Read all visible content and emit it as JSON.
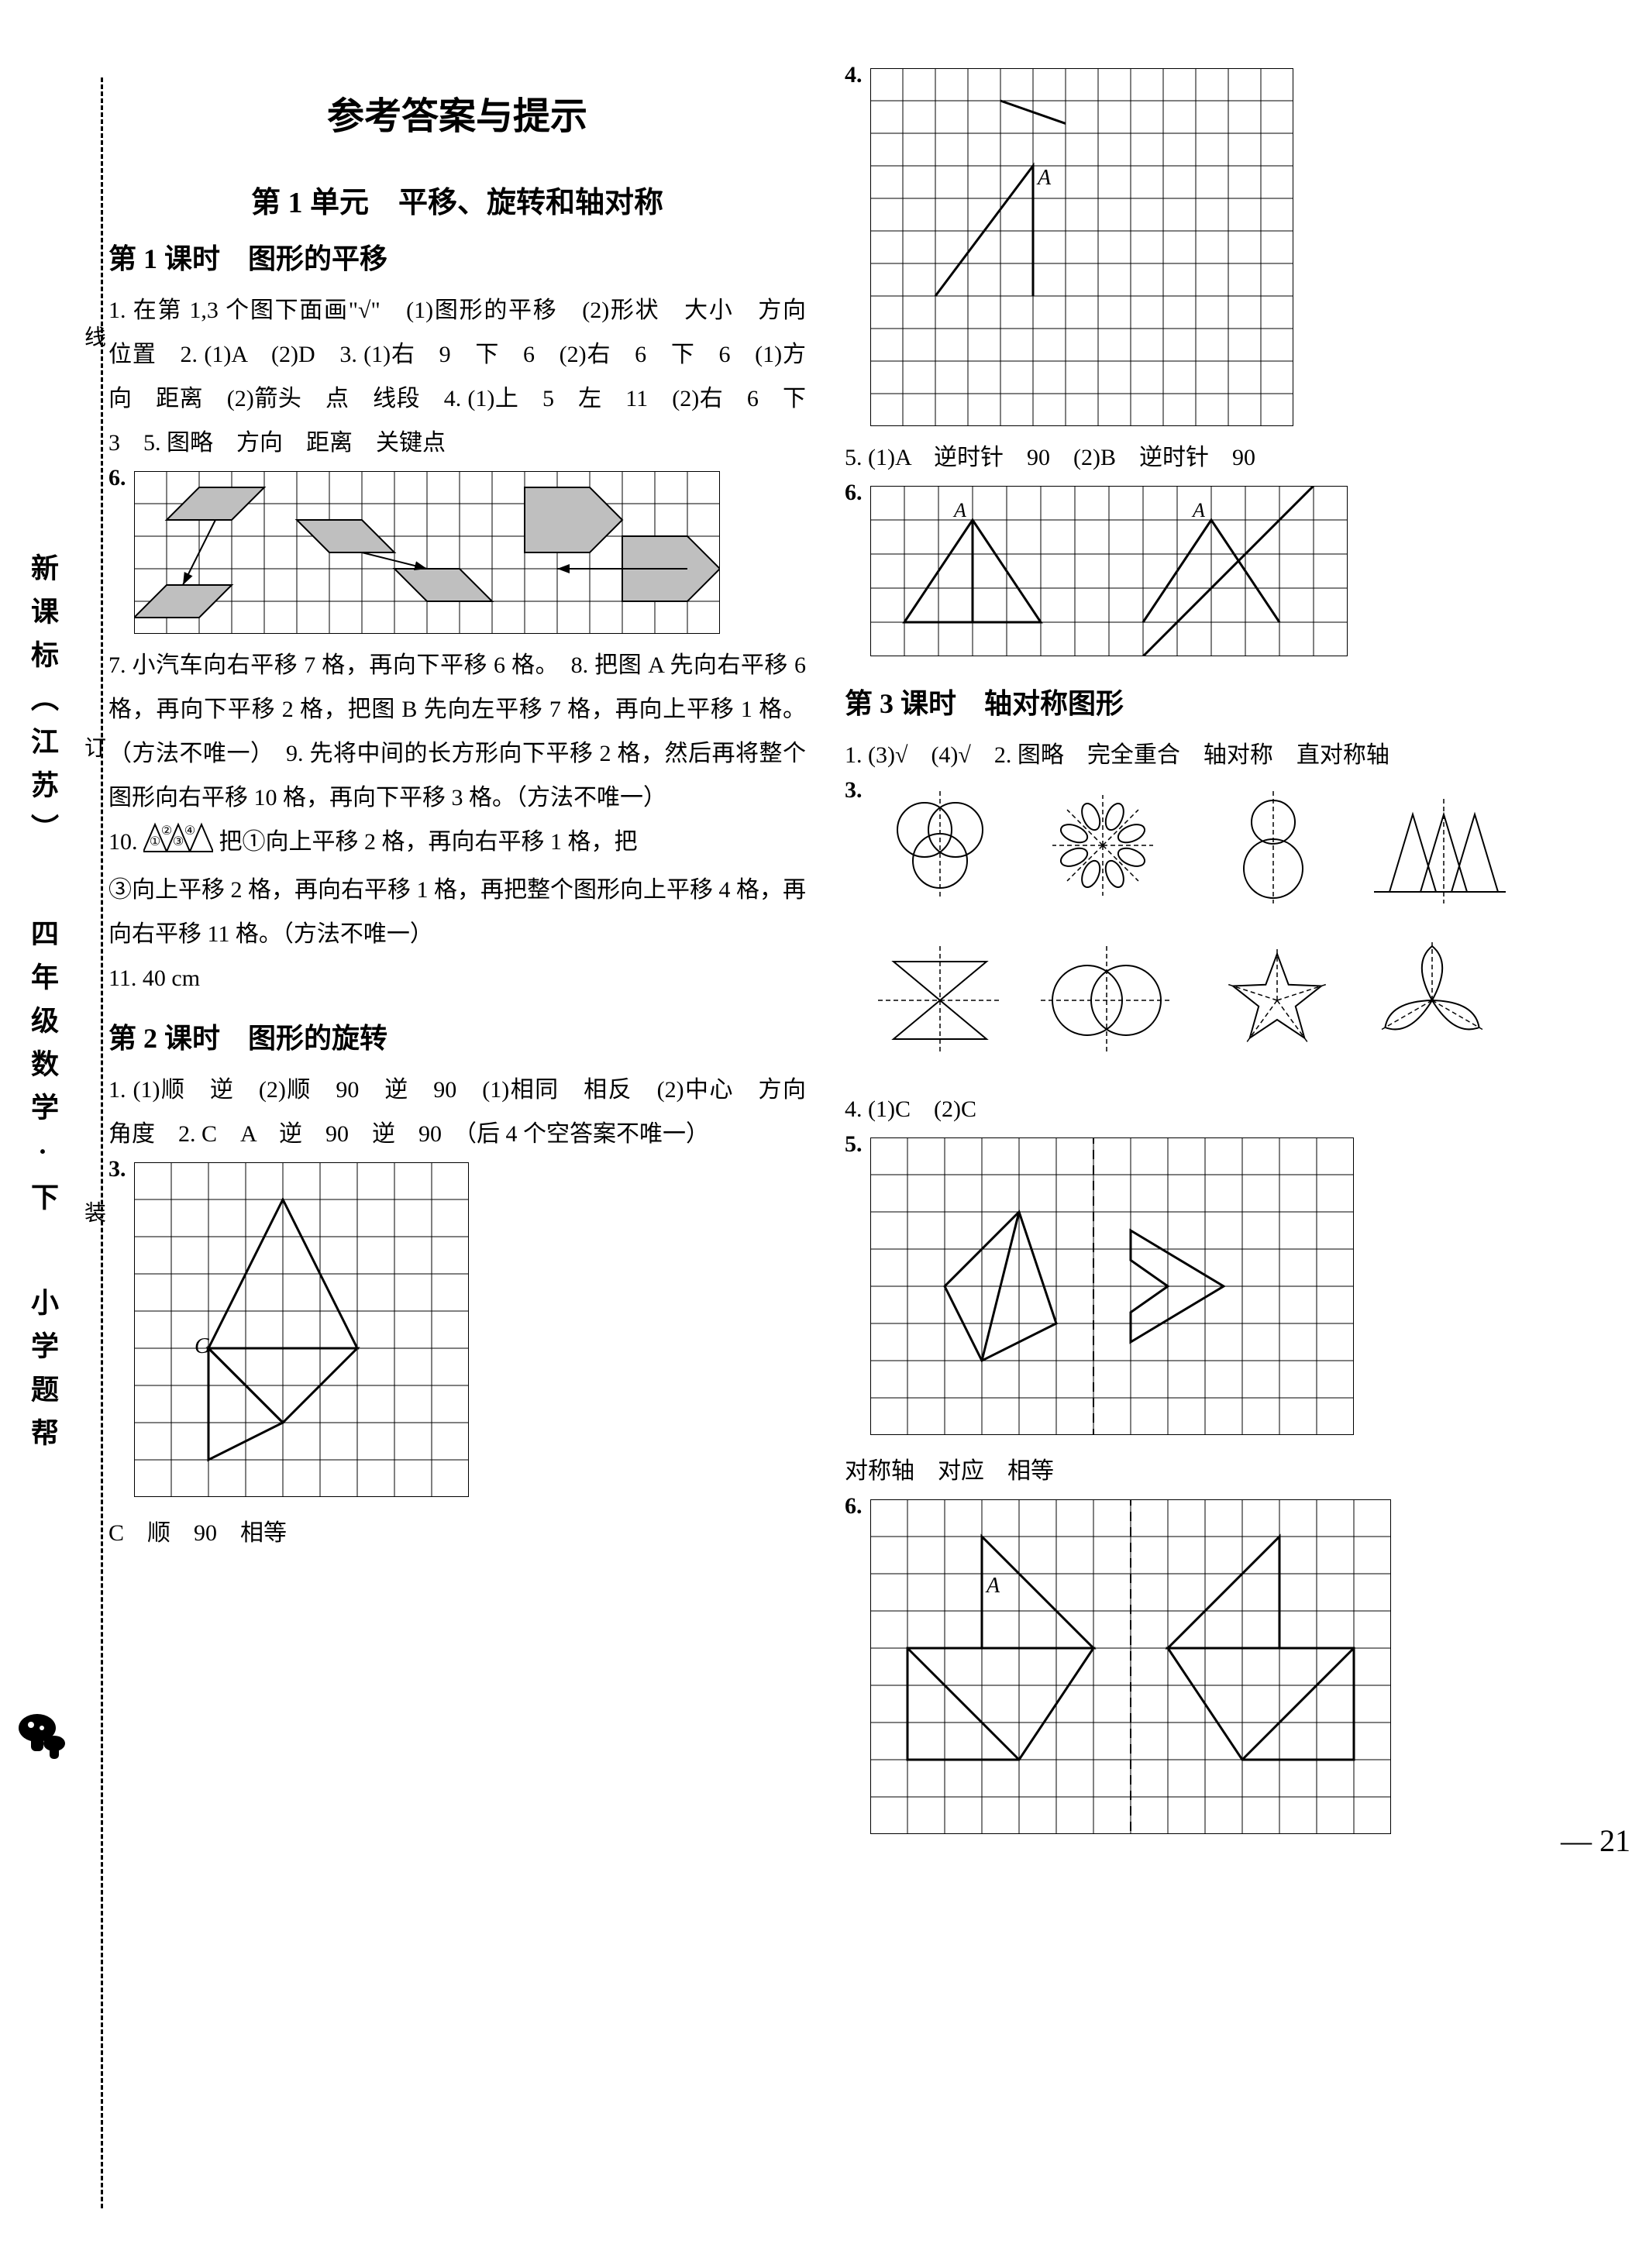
{
  "spine": {
    "book_title": "小学题帮",
    "grade": "四年级数学·下",
    "edition": "新课标（江苏）",
    "markers": [
      "装",
      "订",
      "线"
    ]
  },
  "colors": {
    "text": "#000000",
    "bg": "#ffffff",
    "grid_line": "#000000",
    "dashed": "#000000",
    "shape_fill": "#bfbfbf"
  },
  "page": {
    "number": "21",
    "main_title": "参考答案与提示",
    "unit_title": "第 1 单元　平移、旋转和轴对称"
  },
  "lesson1": {
    "title": "第 1 课时　图形的平移",
    "text": "1. 在第 1,3 个图下面画\"√\"　(1)图形的平移　(2)形状　大小　方向　位置　2. (1)A　(2)D　3. (1)右　9　下　6　(2)右　6　下　6　(1)方向　距离　(2)箭头　点　线段　4. (1)上　5　左　11　(2)右　6　下　3　5. 图略　方向　距离　关键点",
    "fig6_label": "6.",
    "text7": "7. 小汽车向右平移 7 格，再向下平移 6 格。　8. 把图 A 先向右平移 6 格，再向下平移 2 格，把图 B 先向左平移 7 格，再向上平移 1 格。（方法不唯一）　9. 先将中间的长方形向下平移 2 格，然后再将整个图形向右平移 10 格，再向下平移 3 格。（方法不唯一）",
    "text10a": "10. ",
    "text10b": " 把①向上平移 2 格，再向右平移 1 格，把",
    "text10c": "③向上平移 2 格，再向右平移 1 格，再把整个图形向上平移 4 格，再向右平移 11 格。（方法不唯一）",
    "text11": "11. 40 cm"
  },
  "lesson2": {
    "title": "第 2 课时　图形的旋转",
    "text": "1. (1)顺　逆　(2)顺　90　逆　90　(1)相同　相反　(2)中心　方向　角度　2. C　A　逆　90　逆　90　（后 4 个空答案不唯一）",
    "fig3_label": "3.",
    "fig3_caption": "C　顺　90　相等",
    "fig3_letter": "C",
    "fig4_label": "4.",
    "fig4_letter": "A",
    "ans5": "5. (1)A　逆时针　90　(2)B　逆时针　90",
    "fig6_label": "6.",
    "fig6_letterA1": "A",
    "fig6_letterA2": "A"
  },
  "lesson3": {
    "title": "第 3 课时　轴对称图形",
    "text1": "1. (3)√　(4)√　2. 图略　完全重合　轴对称　直对称轴",
    "fig3_label": "3.",
    "ans4": "4. (1)C　(2)C",
    "fig5_label": "5.",
    "fig5_caption": "对称轴　对应　相等",
    "fig6_label": "6.",
    "fig6_letter": "A"
  },
  "grids": {
    "l1f6": {
      "cols": 18,
      "rows": 5,
      "cell": 42
    },
    "l2f3": {
      "cols": 9,
      "rows": 9,
      "cell": 48,
      "letter": "C"
    },
    "l2f4": {
      "cols": 13,
      "rows": 11,
      "cell": 42,
      "letter": "A"
    },
    "l2f6": {
      "cols": 14,
      "rows": 5,
      "cell": 44
    },
    "l3f5": {
      "cols": 13,
      "rows": 8,
      "cell": 48
    },
    "l3f6": {
      "cols": 14,
      "rows": 9,
      "cell": 48,
      "letter": "A"
    }
  }
}
